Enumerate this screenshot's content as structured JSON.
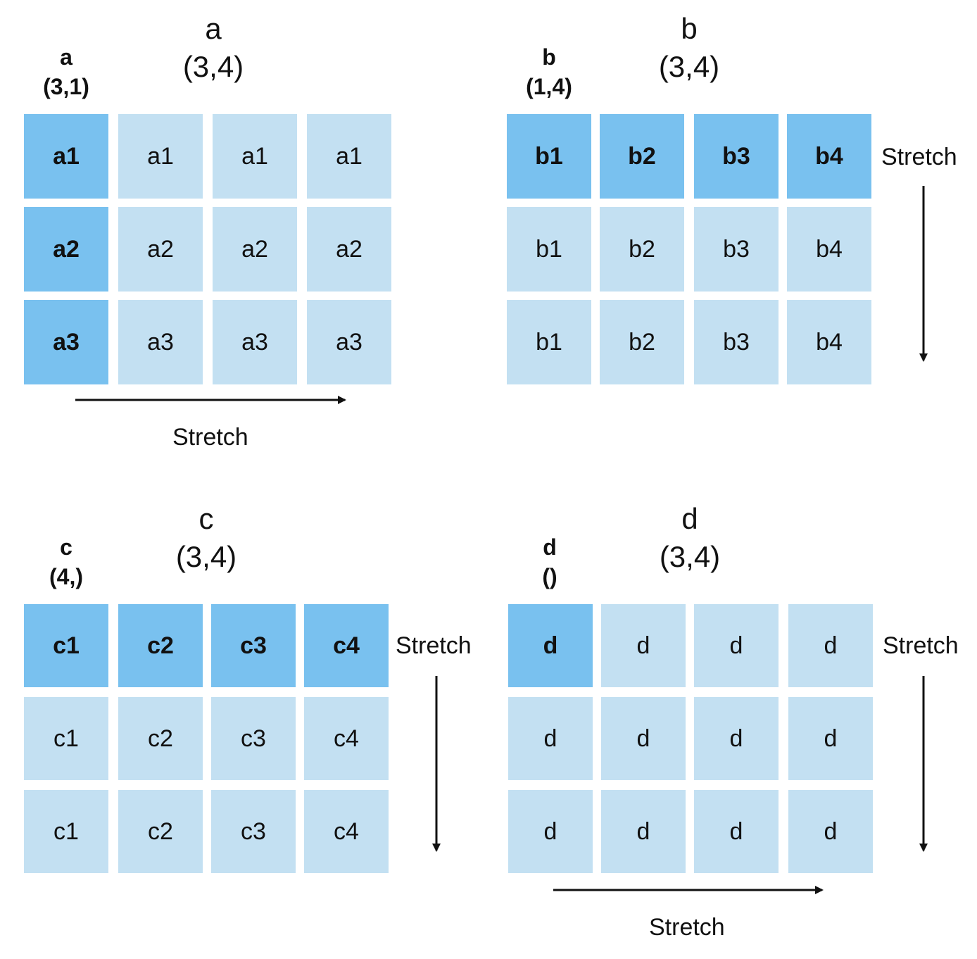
{
  "panels": [
    {
      "id": "a",
      "source_name": "a",
      "source_shape": "(3,1)",
      "result_name": "a",
      "result_shape": "(3,4)",
      "cells": [
        [
          "a1",
          "a1",
          "a1",
          "a1"
        ],
        [
          "a2",
          "a2",
          "a2",
          "a2"
        ],
        [
          "a3",
          "a3",
          "a3",
          "a3"
        ]
      ],
      "source_cells": [
        [
          0,
          0
        ],
        [
          1,
          0
        ],
        [
          2,
          0
        ]
      ],
      "stretch_label": "Stretch",
      "stretch_direction": "horizontal"
    },
    {
      "id": "b",
      "source_name": "b",
      "source_shape": "(1,4)",
      "result_name": "b",
      "result_shape": "(3,4)",
      "cells": [
        [
          "b1",
          "b2",
          "b3",
          "b4"
        ],
        [
          "b1",
          "b2",
          "b3",
          "b4"
        ],
        [
          "b1",
          "b2",
          "b3",
          "b4"
        ]
      ],
      "source_cells": [
        [
          0,
          0
        ],
        [
          0,
          1
        ],
        [
          0,
          2
        ],
        [
          0,
          3
        ]
      ],
      "stretch_label": "Stretch",
      "stretch_direction": "vertical"
    },
    {
      "id": "c",
      "source_name": "c",
      "source_shape": "(4,)",
      "result_name": "c",
      "result_shape": "(3,4)",
      "cells": [
        [
          "c1",
          "c2",
          "c3",
          "c4"
        ],
        [
          "c1",
          "c2",
          "c3",
          "c4"
        ],
        [
          "c1",
          "c2",
          "c3",
          "c4"
        ]
      ],
      "source_cells": [
        [
          0,
          0
        ],
        [
          0,
          1
        ],
        [
          0,
          2
        ],
        [
          0,
          3
        ]
      ],
      "stretch_label": "Stretch",
      "stretch_direction": "vertical"
    },
    {
      "id": "d",
      "source_name": "d",
      "source_shape": "()",
      "result_name": "d",
      "result_shape": "(3,4)",
      "cells": [
        [
          "d",
          "d",
          "d",
          "d"
        ],
        [
          "d",
          "d",
          "d",
          "d"
        ],
        [
          "d",
          "d",
          "d",
          "d"
        ]
      ],
      "source_cells": [
        [
          0,
          0
        ]
      ],
      "stretch_labels": [
        "Stretch",
        "Stretch"
      ],
      "stretch_direction": "both"
    }
  ],
  "colors": {
    "source_cell": "#79c1ef",
    "broadcast_cell": "#c3e0f2",
    "arrow": "#111111"
  }
}
